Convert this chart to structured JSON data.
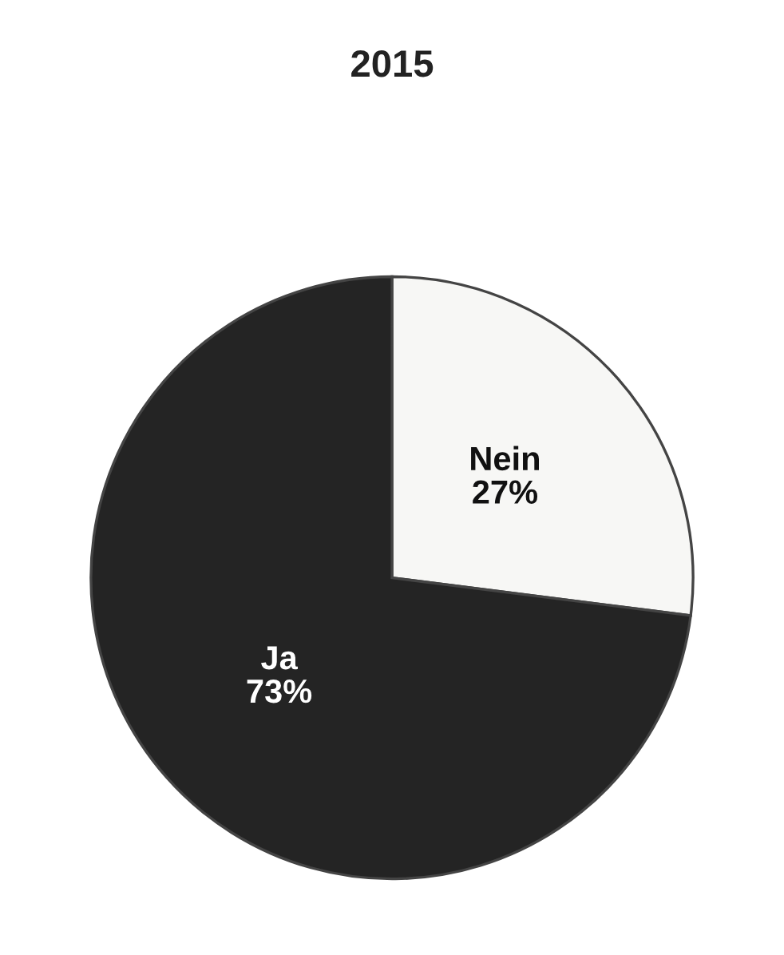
{
  "chart_data": {
    "type": "pie",
    "title": "2015",
    "categories": [
      "Nein",
      "Ja"
    ],
    "values": [
      27,
      73
    ],
    "value_labels": [
      "27%",
      "73%"
    ],
    "colors": [
      "#f7f7f5",
      "#242424"
    ]
  }
}
